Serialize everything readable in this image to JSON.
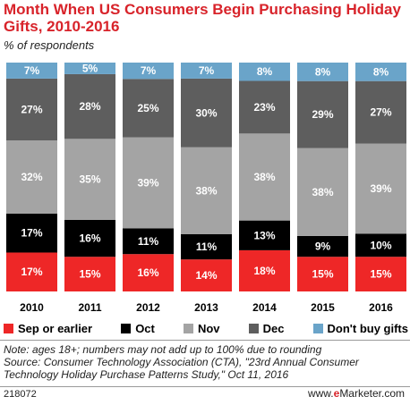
{
  "chart_data": {
    "type": "bar",
    "stacked": true,
    "title": "Month When US Consumers Begin Purchasing Holiday Gifts, 2010-2016",
    "subtitle": "% of respondents",
    "categories": [
      "2010",
      "2011",
      "2012",
      "2013",
      "2014",
      "2015",
      "2016"
    ],
    "series": [
      {
        "name": "Sep or earlier",
        "color": "#ee2727",
        "values": [
          17,
          15,
          16,
          14,
          18,
          15,
          15
        ]
      },
      {
        "name": "Oct",
        "color": "#000000",
        "values": [
          17,
          16,
          11,
          11,
          13,
          9,
          10
        ]
      },
      {
        "name": "Nov",
        "color": "#a4a4a4",
        "values": [
          32,
          35,
          39,
          38,
          38,
          38,
          39
        ]
      },
      {
        "name": "Dec",
        "color": "#5e5e5e",
        "values": [
          27,
          28,
          25,
          30,
          23,
          29,
          27
        ]
      },
      {
        "name": "Don't buy gifts",
        "color": "#6aa4c9",
        "values": [
          7,
          5,
          7,
          7,
          8,
          8,
          8
        ]
      }
    ],
    "value_suffix": "%",
    "legend_position": "bottom"
  },
  "note_line1": "Note: ages 18+; numbers may not add up to 100% due to rounding",
  "note_line2": "Source: Consumer Technology Association (CTA), \"23rd Annual Consumer Technology Holiday Purchase Patterns Study,\" Oct 11, 2016",
  "footer": {
    "chart_id": "218072",
    "brand_prefix": "www.",
    "brand_e": "e",
    "brand_rest": "Marketer.com"
  }
}
